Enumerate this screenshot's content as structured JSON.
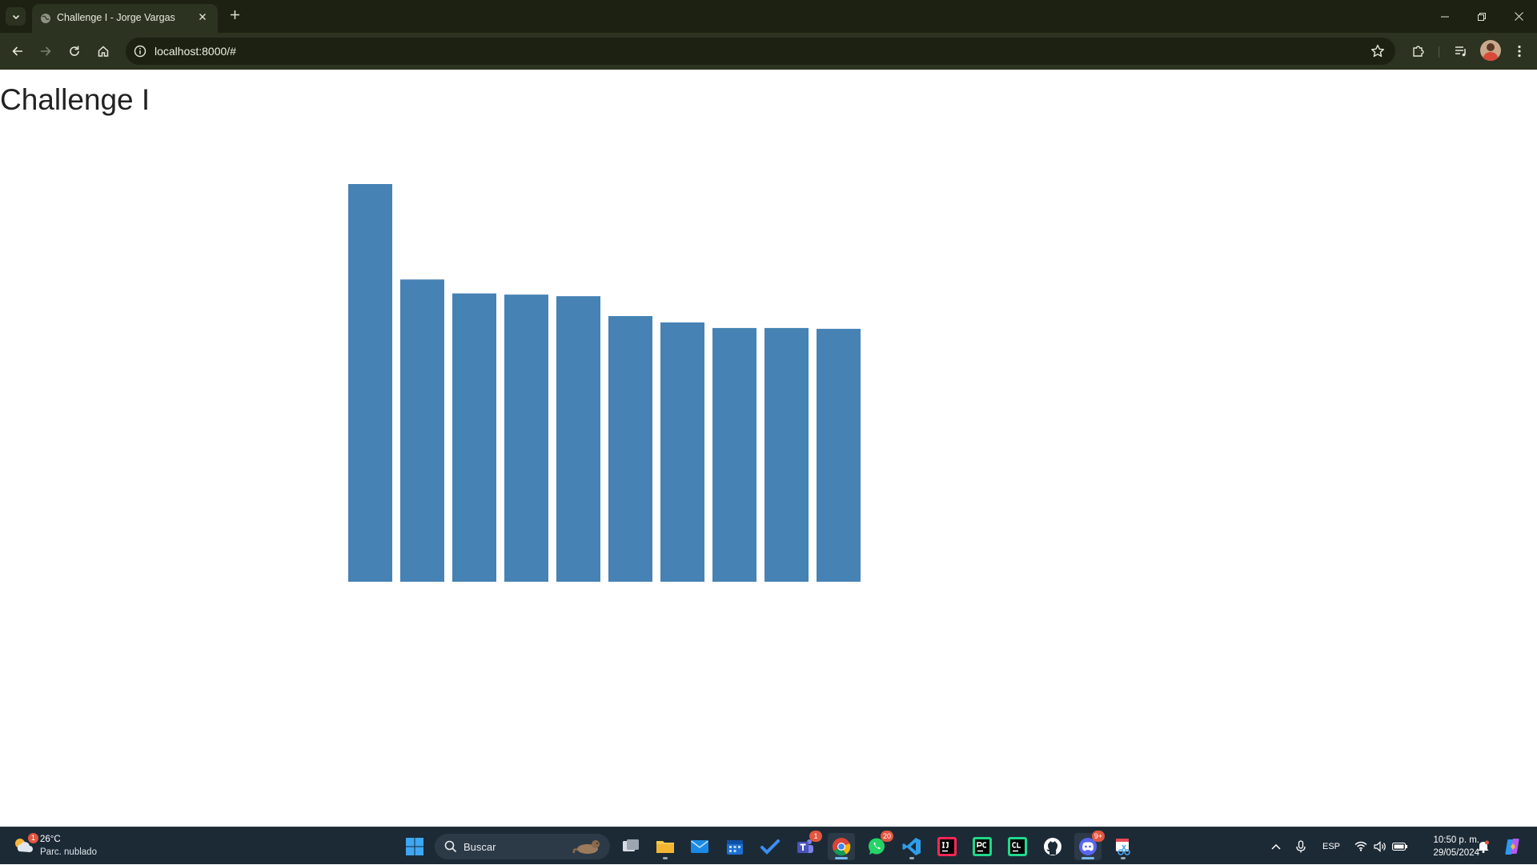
{
  "browser": {
    "tab_title": "Challenge I - Jorge Vargas",
    "url": "localhost:8000/#"
  },
  "page": {
    "title": "Challenge I"
  },
  "chart_data": {
    "type": "bar",
    "values": [
      100,
      76,
      72.5,
      72.2,
      71.8,
      66.8,
      65.2,
      63.8,
      63.8,
      63.6
    ],
    "ylim": [
      0,
      100
    ],
    "bar_color": "#4682b4",
    "grid": false,
    "axes_visible": false
  },
  "taskbar": {
    "weather_temp": "26°C",
    "weather_desc": "Parc. nublado",
    "weather_badge": "1",
    "search_placeholder": "Buscar",
    "teams_badge": "1",
    "whatsapp_badge": "20",
    "discord_badge": "9+",
    "language": "ESP",
    "time": "10:50 p. m.",
    "date": "29/05/2024"
  },
  "colors": {
    "browser_frame": "#1c2112",
    "browser_toolbar": "#2c3320",
    "taskbar": "#1c2a36"
  }
}
